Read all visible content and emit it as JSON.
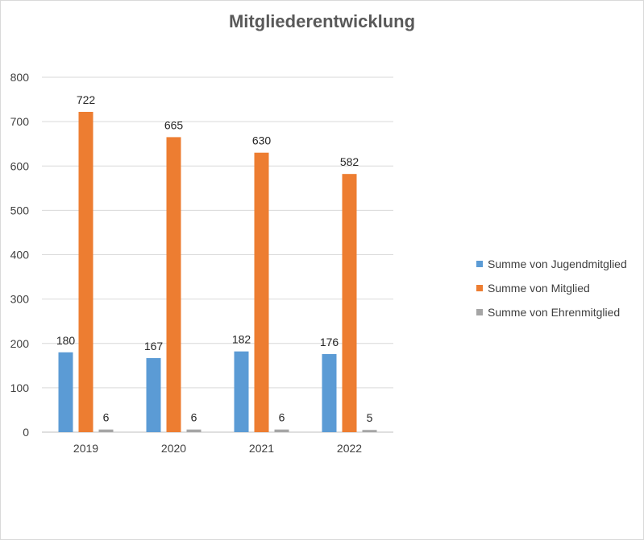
{
  "chart_data": {
    "type": "bar",
    "title": "Mitgliederentwicklung",
    "categories": [
      "2019",
      "2020",
      "2021",
      "2022"
    ],
    "series": [
      {
        "name": "Summe von Jugendmitglied",
        "values": [
          180,
          167,
          182,
          176
        ],
        "color": "#5b9bd5"
      },
      {
        "name": "Summe von Mitglied",
        "values": [
          722,
          665,
          630,
          582
        ],
        "color": "#ed7d31"
      },
      {
        "name": "Summe von Ehrenmitglied",
        "values": [
          6,
          6,
          6,
          5
        ],
        "color": "#a5a5a5"
      }
    ],
    "ylim": [
      0,
      800
    ],
    "yticks": [
      0,
      100,
      200,
      300,
      400,
      500,
      600,
      700,
      800
    ],
    "grid": true,
    "legend_position": "right",
    "data_labels": true
  }
}
